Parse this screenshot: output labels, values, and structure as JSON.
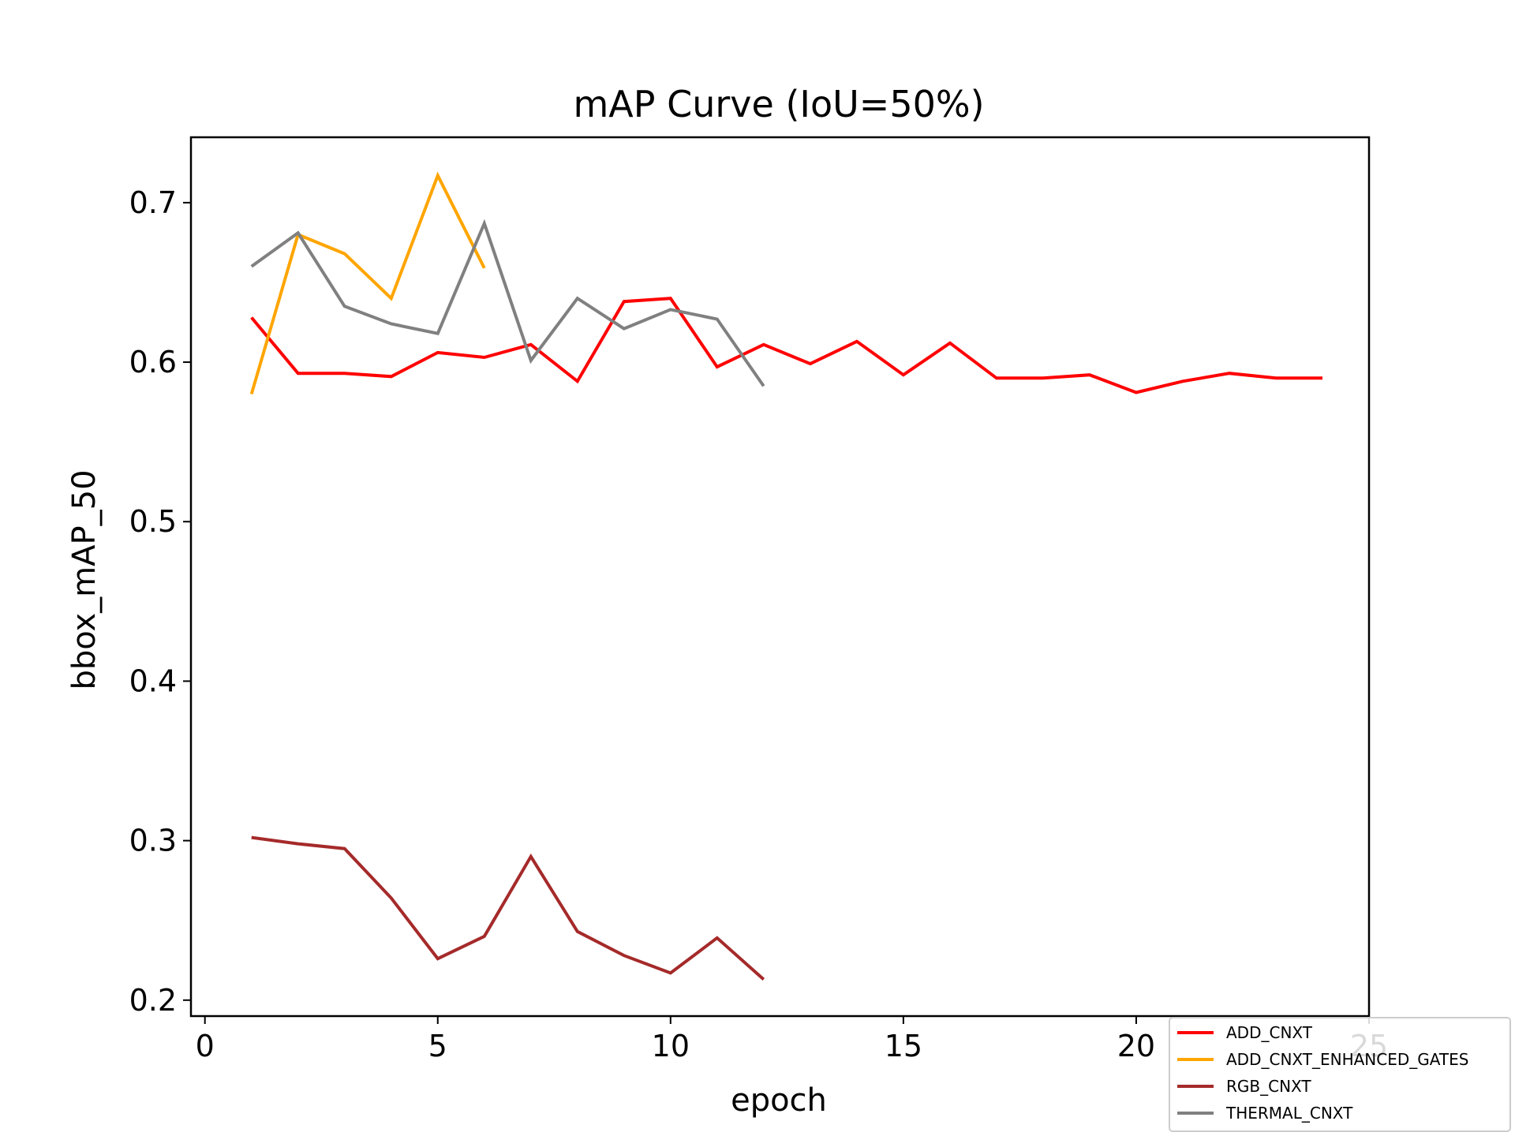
{
  "chart_data": {
    "type": "line",
    "title": "mAP Curve (IoU=50%)",
    "xlabel": "epoch",
    "ylabel": "bbox_mAP_50",
    "xlim": [
      -0.3,
      25
    ],
    "ylim": [
      0.19,
      0.741
    ],
    "xticks": [
      0,
      5,
      10,
      15,
      20,
      25
    ],
    "yticks": [
      0.2,
      0.3,
      0.4,
      0.5,
      0.6,
      0.7
    ],
    "grid": false,
    "legend_position": "bottom-right",
    "series": [
      {
        "name": "ADD_CNXT",
        "color": "#ff0000",
        "x": [
          1,
          2,
          3,
          4,
          5,
          6,
          7,
          8,
          9,
          10,
          11,
          12,
          13,
          14,
          15,
          16,
          17,
          18,
          19,
          20,
          21,
          22,
          23,
          24
        ],
        "y": [
          0.628,
          0.593,
          0.593,
          0.591,
          0.606,
          0.603,
          0.611,
          0.588,
          0.638,
          0.64,
          0.597,
          0.611,
          0.599,
          0.613,
          0.592,
          0.612,
          0.59,
          0.59,
          0.592,
          0.581,
          0.588,
          0.593,
          0.59,
          0.59
        ]
      },
      {
        "name": "ADD_CNXT_ENHANCED_GATES",
        "color": "#ffa500",
        "x": [
          1,
          2,
          3,
          4,
          5,
          6
        ],
        "y": [
          0.58,
          0.68,
          0.668,
          0.64,
          0.717,
          0.659
        ]
      },
      {
        "name": "RGB_CNXT",
        "color": "#a52a2a",
        "x": [
          1,
          2,
          3,
          4,
          5,
          6,
          7,
          8,
          9,
          10,
          11,
          12
        ],
        "y": [
          0.302,
          0.298,
          0.295,
          0.264,
          0.226,
          0.24,
          0.29,
          0.243,
          0.228,
          0.217,
          0.239,
          0.213
        ]
      },
      {
        "name": "THERMAL_CNXT",
        "color": "#808080",
        "x": [
          1,
          2,
          3,
          4,
          5,
          6,
          7,
          8,
          9,
          10,
          11,
          12
        ],
        "y": [
          0.66,
          0.681,
          0.635,
          0.624,
          0.618,
          0.687,
          0.601,
          0.64,
          0.621,
          0.633,
          0.627,
          0.585
        ]
      }
    ]
  }
}
